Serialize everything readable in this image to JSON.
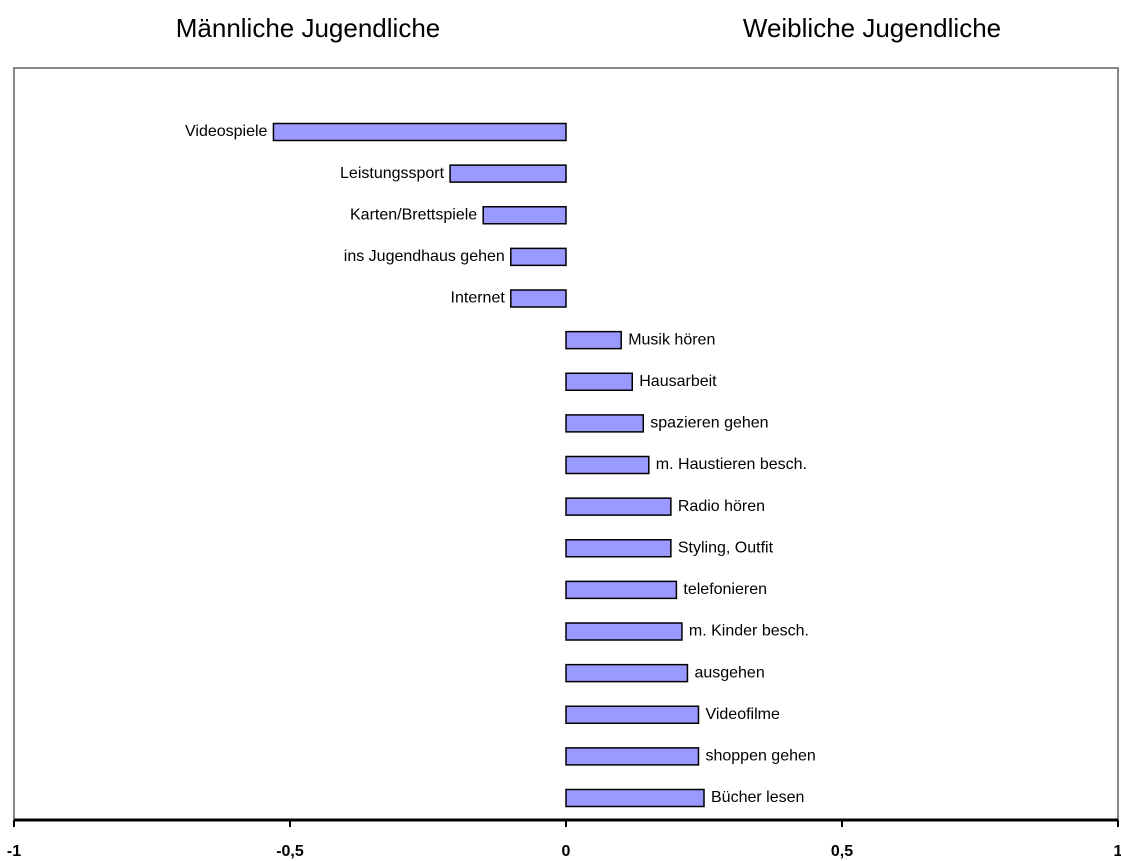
{
  "chart_data": {
    "type": "bar",
    "orientation": "horizontal",
    "title_left": "Männliche Jugendliche",
    "title_right": "Weibliche Jugendliche",
    "categories": [
      "Videospiele",
      "Leistungssport",
      "Karten/Brettspiele",
      "ins Jugendhaus gehen",
      "Internet",
      "Musik hören",
      "Hausarbeit",
      "spazieren gehen",
      "m. Haustieren besch.",
      "Radio hören",
      "Styling, Outfit",
      "telefonieren",
      "m. Kinder besch.",
      "ausgehen",
      "Videofilme",
      "shoppen gehen",
      "Bücher lesen"
    ],
    "values": [
      -0.53,
      -0.21,
      -0.15,
      -0.1,
      -0.1,
      0.1,
      0.12,
      0.14,
      0.15,
      0.19,
      0.19,
      0.2,
      0.21,
      0.22,
      0.24,
      0.24,
      0.25
    ],
    "color": "#9999ff",
    "xlim": [
      -1,
      1
    ],
    "xticks": [
      -1,
      {
        "value": -0.5,
        "label": "-0,5"
      },
      0,
      {
        "value": 0.5,
        "label": "0,5"
      },
      1
    ],
    "grid": false
  }
}
